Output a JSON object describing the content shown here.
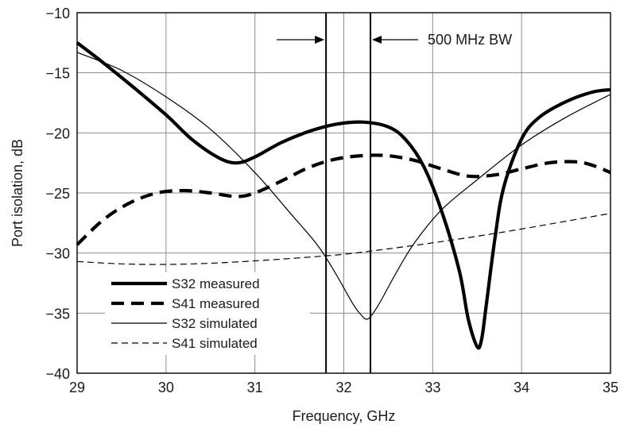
{
  "chart_data": {
    "type": "line",
    "xlabel": "Frequency, GHz",
    "ylabel": "Port isolation, dB",
    "xlim": [
      29,
      35
    ],
    "ylim": [
      -40,
      -10
    ],
    "grid": true,
    "xticks": [
      29,
      30,
      31,
      32,
      33,
      34,
      35
    ],
    "xtick_labels": [
      "29",
      "30",
      "31",
      "32",
      "33",
      "34",
      "35"
    ],
    "yticks": [
      -10,
      -15,
      -20,
      -25,
      -30,
      -35,
      -40
    ],
    "ytick_labels": [
      "−10",
      "−15",
      "−20",
      "−25",
      "−30",
      "−35",
      "−40"
    ],
    "legend_position": "bottom-left",
    "series": [
      {
        "name": "S32 measured",
        "style": "thick-solid",
        "color": "#000000",
        "x": [
          29.0,
          29.3,
          29.6,
          30.0,
          30.3,
          30.6,
          30.8,
          31.0,
          31.3,
          31.6,
          31.9,
          32.2,
          32.5,
          32.7,
          32.9,
          33.1,
          33.3,
          33.4,
          33.5,
          33.55,
          33.6,
          33.7,
          33.8,
          34.0,
          34.2,
          34.5,
          34.8,
          35.0
        ],
        "y": [
          -12.5,
          -14.2,
          -16.0,
          -18.5,
          -20.6,
          -22.1,
          -22.5,
          -22.0,
          -20.8,
          -19.9,
          -19.3,
          -19.1,
          -19.5,
          -20.6,
          -22.8,
          -26.5,
          -31.5,
          -35.5,
          -37.8,
          -37.2,
          -34.5,
          -28.8,
          -24.5,
          -20.5,
          -18.7,
          -17.4,
          -16.6,
          -16.4
        ]
      },
      {
        "name": "S41 measured",
        "style": "thick-dashed",
        "color": "#000000",
        "x": [
          29.0,
          29.3,
          29.6,
          29.9,
          30.2,
          30.5,
          30.8,
          31.0,
          31.3,
          31.6,
          31.9,
          32.2,
          32.5,
          32.8,
          33.1,
          33.4,
          33.7,
          34.0,
          34.3,
          34.6,
          34.8,
          35.0
        ],
        "y": [
          -29.3,
          -27.2,
          -25.8,
          -25.0,
          -24.8,
          -25.0,
          -25.3,
          -25.0,
          -24.0,
          -22.9,
          -22.2,
          -21.9,
          -21.9,
          -22.3,
          -23.0,
          -23.6,
          -23.5,
          -23.0,
          -22.5,
          -22.4,
          -22.7,
          -23.3
        ]
      },
      {
        "name": "S32 simulated",
        "style": "thin-solid",
        "color": "#000000",
        "x": [
          29.0,
          29.5,
          30.0,
          30.5,
          31.0,
          31.4,
          31.7,
          31.9,
          32.1,
          32.2,
          32.25,
          32.3,
          32.4,
          32.6,
          32.8,
          33.1,
          33.5,
          34.0,
          34.5,
          35.0
        ],
        "y": [
          -13.3,
          -14.8,
          -17.0,
          -19.7,
          -23.3,
          -26.7,
          -29.3,
          -31.6,
          -34.2,
          -35.2,
          -35.5,
          -35.3,
          -34.2,
          -31.5,
          -29.1,
          -26.4,
          -23.9,
          -21.0,
          -18.7,
          -16.8
        ]
      },
      {
        "name": "S41 simulated",
        "style": "thin-dashed",
        "color": "#000000",
        "x": [
          29.0,
          29.5,
          30.0,
          30.5,
          31.0,
          31.5,
          32.0,
          32.5,
          33.0,
          33.5,
          34.0,
          34.5,
          35.0
        ],
        "y": [
          -30.7,
          -30.9,
          -30.95,
          -30.85,
          -30.65,
          -30.4,
          -30.1,
          -29.65,
          -29.15,
          -28.6,
          -28.0,
          -27.35,
          -26.7
        ]
      }
    ],
    "annotations": [
      {
        "text": "500 MHz BW",
        "band_x": [
          31.8,
          32.3
        ]
      }
    ]
  }
}
